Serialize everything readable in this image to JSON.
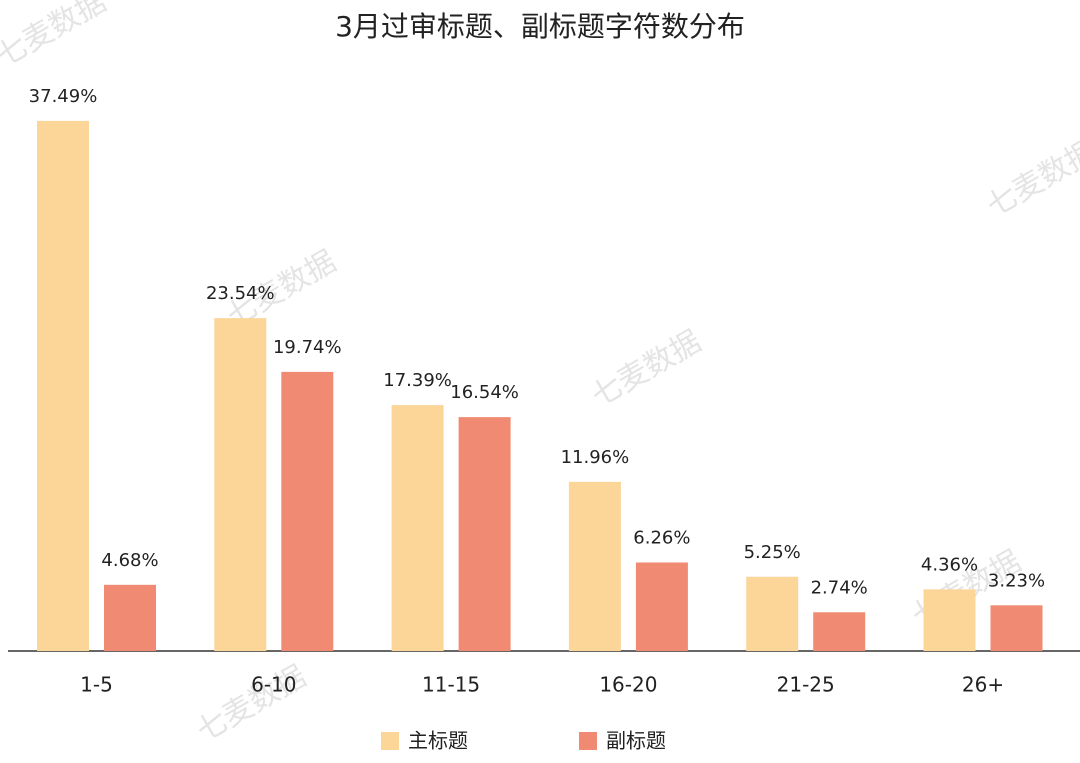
{
  "chart_data": {
    "type": "bar",
    "title": "3月过审标题、副标题字符数分布",
    "categories": [
      "1-5",
      "6-10",
      "11-15",
      "16-20",
      "21-25",
      "26+"
    ],
    "series": [
      {
        "name": "主标题",
        "color": "#fcd598",
        "values": [
          37.49,
          23.54,
          17.39,
          11.96,
          5.25,
          4.36
        ],
        "value_labels": [
          "37.49%",
          "23.54%",
          "17.39%",
          "11.96%",
          "5.25%",
          "4.36%"
        ]
      },
      {
        "name": "副标题",
        "color": "#f08a72",
        "values": [
          4.68,
          19.74,
          16.54,
          6.26,
          2.74,
          3.23
        ],
        "value_labels": [
          "4.68%",
          "19.74%",
          "16.54%",
          "6.26%",
          "2.74%",
          "3.23%"
        ]
      }
    ],
    "watermark": "七麦数据"
  }
}
